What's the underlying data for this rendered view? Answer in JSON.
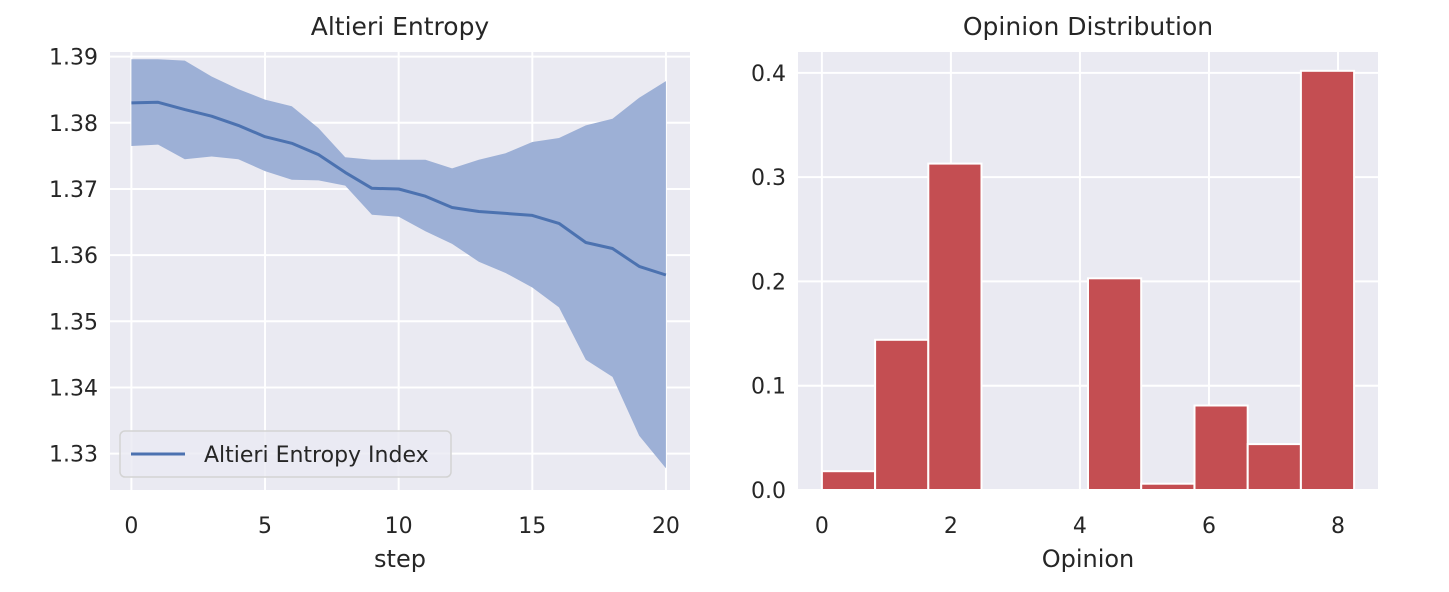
{
  "chart_data": [
    {
      "type": "line",
      "title": "Altieri Entropy",
      "xlabel": "step",
      "ylabel": "",
      "xlim": [
        -0.8,
        20.9
      ],
      "ylim": [
        1.3245,
        1.3907
      ],
      "xticks": [
        0,
        5,
        10,
        15,
        20
      ],
      "xtick_labels": [
        "0",
        "5",
        "10",
        "15",
        "20"
      ],
      "yticks": [
        1.33,
        1.34,
        1.35,
        1.36,
        1.37,
        1.38,
        1.39
      ],
      "ytick_labels": [
        "1.33",
        "1.34",
        "1.35",
        "1.36",
        "1.37",
        "1.38",
        "1.39"
      ],
      "grid": true,
      "legend": {
        "position": "lower-left",
        "entries": [
          "Altieri Entropy Index"
        ]
      },
      "series": [
        {
          "name": "Altieri Entropy Index",
          "color": "#4c72b0",
          "x": [
            0,
            1,
            2,
            3,
            4,
            5,
            6,
            7,
            8,
            9,
            10,
            11,
            12,
            13,
            14,
            15,
            16,
            17,
            18,
            19,
            20
          ],
          "values": [
            1.383,
            1.3831,
            1.382,
            1.381,
            1.3796,
            1.3779,
            1.3769,
            1.3752,
            1.3725,
            1.3701,
            1.37,
            1.3689,
            1.3672,
            1.3666,
            1.3663,
            1.366,
            1.3648,
            1.3619,
            1.361,
            1.3583,
            1.357
          ],
          "band_upper": [
            1.3896,
            1.3896,
            1.3894,
            1.387,
            1.3851,
            1.3835,
            1.3825,
            1.3792,
            1.3748,
            1.3744,
            1.3744,
            1.3744,
            1.3731,
            1.3744,
            1.3754,
            1.3771,
            1.3777,
            1.3796,
            1.3806,
            1.3838,
            1.3863
          ],
          "band_lower": [
            1.3765,
            1.3767,
            1.3745,
            1.3749,
            1.3745,
            1.3727,
            1.3714,
            1.3713,
            1.3705,
            1.3661,
            1.3658,
            1.3636,
            1.3617,
            1.359,
            1.3573,
            1.3551,
            1.3521,
            1.3442,
            1.3416,
            1.3327,
            1.3278
          ],
          "band_color": "#9db0d6"
        }
      ]
    },
    {
      "type": "bar",
      "title": "Opinion Distribution",
      "xlabel": "Opinion",
      "ylabel": "",
      "xlim": [
        -0.37,
        8.62
      ],
      "ylim": [
        0,
        0.42
      ],
      "xticks": [
        0,
        2,
        4,
        6,
        8
      ],
      "xtick_labels": [
        "0",
        "2",
        "4",
        "6",
        "8"
      ],
      "yticks": [
        0.0,
        0.1,
        0.2,
        0.3,
        0.4
      ],
      "ytick_labels": [
        "0.0",
        "0.1",
        "0.2",
        "0.3",
        "0.4"
      ],
      "grid": true,
      "color": "#c44e52",
      "bin_edges": [
        0.0,
        0.825,
        1.65,
        2.475,
        3.3,
        4.125,
        4.95,
        5.775,
        6.6,
        7.425,
        8.25
      ],
      "values": [
        0.018,
        0.144,
        0.313,
        0.0,
        0.0,
        0.203,
        0.006,
        0.081,
        0.044,
        0.402
      ]
    }
  ]
}
